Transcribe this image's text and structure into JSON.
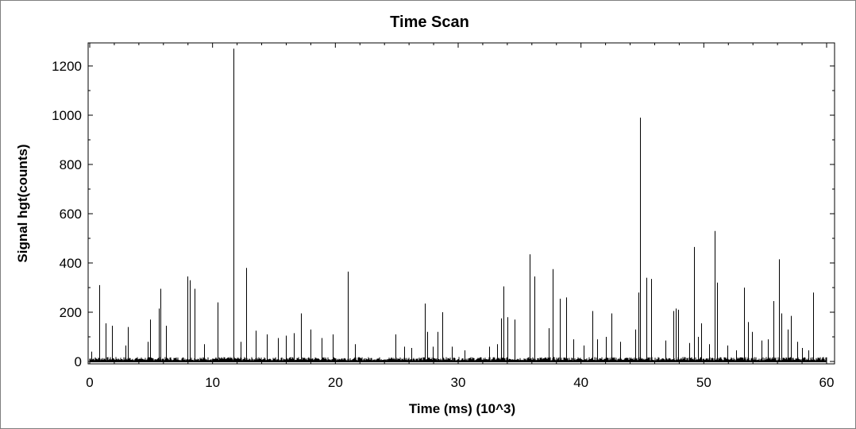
{
  "chart_data": {
    "type": "bar",
    "title": "Time Scan",
    "xlabel": "Time (ms) (10^3)",
    "ylabel": "Signal hgt(counts)",
    "xlim": [
      0,
      60
    ],
    "ylim": [
      0,
      1280
    ],
    "xticks": [
      0,
      10,
      20,
      30,
      40,
      50,
      60
    ],
    "yticks": [
      0,
      200,
      400,
      600,
      800,
      1000,
      1200
    ],
    "baseline_noise": 18,
    "grid": false,
    "legend": "none",
    "colors": {
      "trace": "#000000",
      "background": "#ffffff",
      "frame": "#7f7f7f"
    },
    "peaks": [
      {
        "x": 0.15,
        "y": 40
      },
      {
        "x": 0.75,
        "y": 310
      },
      {
        "x": 1.3,
        "y": 155
      },
      {
        "x": 1.8,
        "y": 145
      },
      {
        "x": 2.9,
        "y": 65
      },
      {
        "x": 3.1,
        "y": 140
      },
      {
        "x": 4.7,
        "y": 80
      },
      {
        "x": 4.9,
        "y": 170
      },
      {
        "x": 5.6,
        "y": 215
      },
      {
        "x": 5.75,
        "y": 295
      },
      {
        "x": 6.2,
        "y": 145
      },
      {
        "x": 7.95,
        "y": 345
      },
      {
        "x": 8.15,
        "y": 330
      },
      {
        "x": 8.55,
        "y": 295
      },
      {
        "x": 9.3,
        "y": 70
      },
      {
        "x": 10.4,
        "y": 240
      },
      {
        "x": 11.7,
        "y": 1270
      },
      {
        "x": 12.3,
        "y": 80
      },
      {
        "x": 12.75,
        "y": 380
      },
      {
        "x": 13.5,
        "y": 125
      },
      {
        "x": 14.4,
        "y": 110
      },
      {
        "x": 15.3,
        "y": 95
      },
      {
        "x": 16.0,
        "y": 105
      },
      {
        "x": 16.6,
        "y": 115
      },
      {
        "x": 17.2,
        "y": 195
      },
      {
        "x": 18.0,
        "y": 130
      },
      {
        "x": 18.9,
        "y": 95
      },
      {
        "x": 19.8,
        "y": 110
      },
      {
        "x": 21.0,
        "y": 365
      },
      {
        "x": 21.6,
        "y": 70
      },
      {
        "x": 24.9,
        "y": 110
      },
      {
        "x": 25.6,
        "y": 60
      },
      {
        "x": 26.2,
        "y": 55
      },
      {
        "x": 27.3,
        "y": 235
      },
      {
        "x": 27.5,
        "y": 120
      },
      {
        "x": 27.9,
        "y": 60
      },
      {
        "x": 28.3,
        "y": 120
      },
      {
        "x": 28.7,
        "y": 200
      },
      {
        "x": 29.5,
        "y": 60
      },
      {
        "x": 30.5,
        "y": 45
      },
      {
        "x": 32.5,
        "y": 60
      },
      {
        "x": 33.2,
        "y": 70
      },
      {
        "x": 33.5,
        "y": 175
      },
      {
        "x": 33.7,
        "y": 305
      },
      {
        "x": 34.0,
        "y": 180
      },
      {
        "x": 34.6,
        "y": 170
      },
      {
        "x": 35.8,
        "y": 435
      },
      {
        "x": 36.2,
        "y": 345
      },
      {
        "x": 37.4,
        "y": 135
      },
      {
        "x": 37.7,
        "y": 375
      },
      {
        "x": 38.3,
        "y": 255
      },
      {
        "x": 38.8,
        "y": 260
      },
      {
        "x": 39.4,
        "y": 90
      },
      {
        "x": 40.2,
        "y": 65
      },
      {
        "x": 40.9,
        "y": 205
      },
      {
        "x": 41.3,
        "y": 90
      },
      {
        "x": 42.0,
        "y": 100
      },
      {
        "x": 42.5,
        "y": 195
      },
      {
        "x": 43.2,
        "y": 80
      },
      {
        "x": 44.4,
        "y": 130
      },
      {
        "x": 44.7,
        "y": 280
      },
      {
        "x": 44.8,
        "y": 990
      },
      {
        "x": 45.3,
        "y": 340
      },
      {
        "x": 45.7,
        "y": 335
      },
      {
        "x": 46.9,
        "y": 85
      },
      {
        "x": 47.5,
        "y": 205
      },
      {
        "x": 47.7,
        "y": 215
      },
      {
        "x": 47.9,
        "y": 210
      },
      {
        "x": 48.8,
        "y": 75
      },
      {
        "x": 49.2,
        "y": 465
      },
      {
        "x": 49.5,
        "y": 100
      },
      {
        "x": 49.8,
        "y": 155
      },
      {
        "x": 50.4,
        "y": 70
      },
      {
        "x": 50.9,
        "y": 530
      },
      {
        "x": 51.1,
        "y": 320
      },
      {
        "x": 51.9,
        "y": 65
      },
      {
        "x": 52.6,
        "y": 45
      },
      {
        "x": 53.3,
        "y": 300
      },
      {
        "x": 53.6,
        "y": 160
      },
      {
        "x": 53.9,
        "y": 120
      },
      {
        "x": 54.7,
        "y": 85
      },
      {
        "x": 55.2,
        "y": 90
      },
      {
        "x": 55.7,
        "y": 245
      },
      {
        "x": 56.1,
        "y": 415
      },
      {
        "x": 56.3,
        "y": 195
      },
      {
        "x": 56.8,
        "y": 130
      },
      {
        "x": 57.1,
        "y": 185
      },
      {
        "x": 57.6,
        "y": 80
      },
      {
        "x": 58.0,
        "y": 55
      },
      {
        "x": 58.5,
        "y": 45
      },
      {
        "x": 58.9,
        "y": 280
      }
    ]
  }
}
